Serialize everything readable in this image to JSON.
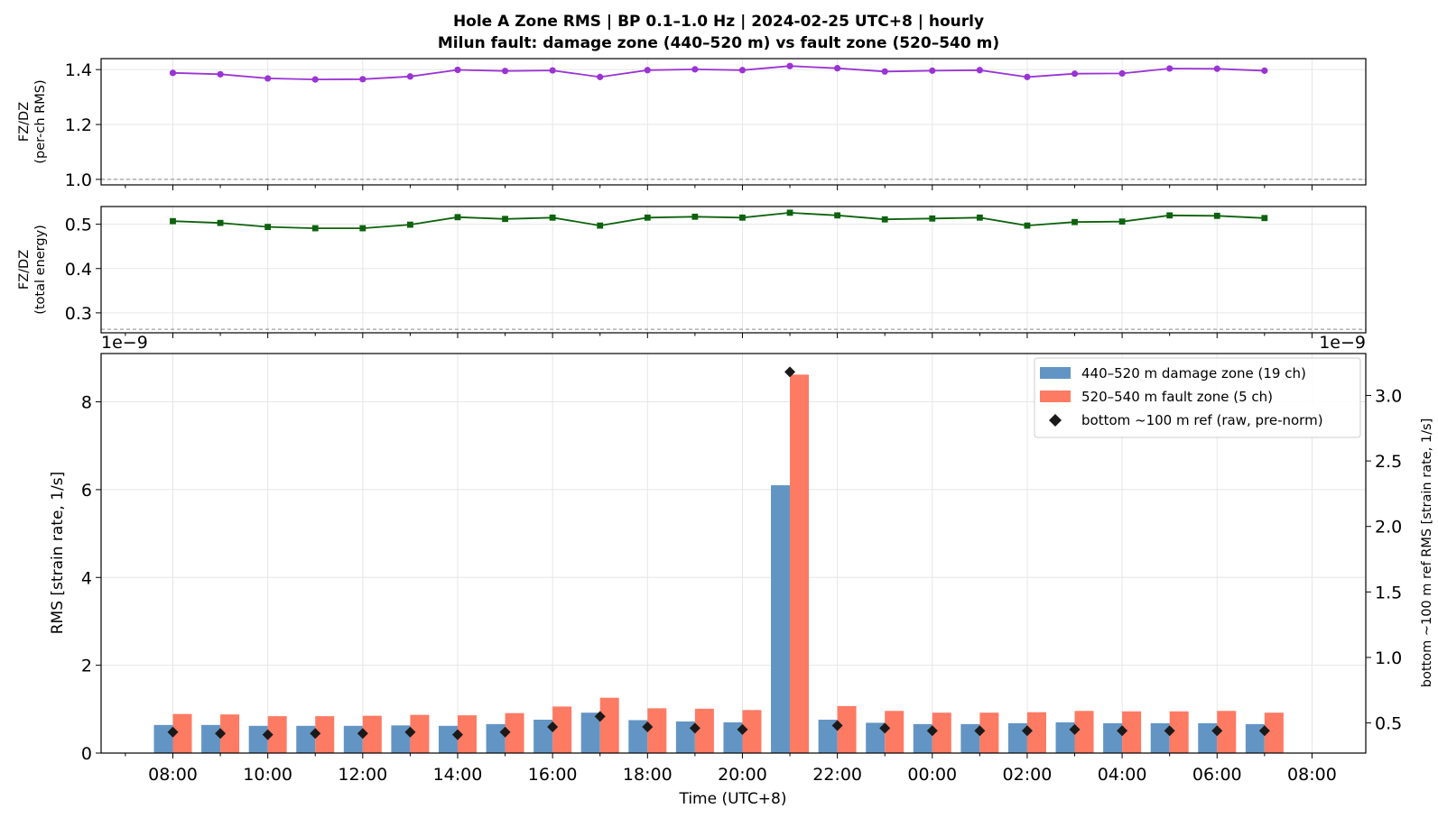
{
  "title_line1": "Hole A Zone RMS  |  BP 0.1–1.0 Hz  |  2024-02-25 UTC+8  |  hourly",
  "title_line2": "Milun fault: damage zone (440–520 m) vs fault zone (520–540 m)",
  "colors": {
    "damage": "#6395c4",
    "fault": "#fd7a63",
    "ratio_rms": "#9a33d4",
    "ratio_energy": "#0d620d",
    "ref_marker": "#1a1a1a",
    "grid": "#e6e6e6"
  },
  "chart_data": [
    {
      "id": "ratio_rms",
      "type": "line",
      "ylabel_line1": "FZ/DZ",
      "ylabel_line2": "(per-ch RMS)",
      "ylim": [
        0.98,
        1.44
      ],
      "yticks": [
        "1.0",
        "1.2",
        "1.4"
      ],
      "reference_line": 1.0,
      "marker": "circle",
      "grid": true,
      "x": [
        "08:00",
        "09:00",
        "10:00",
        "11:00",
        "12:00",
        "13:00",
        "14:00",
        "15:00",
        "16:00",
        "17:00",
        "18:00",
        "19:00",
        "20:00",
        "21:00",
        "22:00",
        "23:00",
        "00:00",
        "01:00",
        "02:00",
        "03:00",
        "04:00",
        "05:00",
        "06:00",
        "07:00"
      ],
      "values": [
        1.388,
        1.383,
        1.368,
        1.364,
        1.365,
        1.375,
        1.399,
        1.395,
        1.397,
        1.373,
        1.398,
        1.401,
        1.398,
        1.413,
        1.405,
        1.393,
        1.396,
        1.398,
        1.373,
        1.385,
        1.386,
        1.404,
        1.403,
        1.396
      ]
    },
    {
      "id": "ratio_energy",
      "type": "line",
      "ylabel_line1": "FZ/DZ",
      "ylabel_line2": "(total energy)",
      "ylim": [
        0.255,
        0.54
      ],
      "yticks": [
        "0.3",
        "0.4",
        "0.5"
      ],
      "reference_line": 0.263,
      "marker": "square",
      "grid": true,
      "x": [
        "08:00",
        "09:00",
        "10:00",
        "11:00",
        "12:00",
        "13:00",
        "14:00",
        "15:00",
        "16:00",
        "17:00",
        "18:00",
        "19:00",
        "20:00",
        "21:00",
        "22:00",
        "23:00",
        "00:00",
        "01:00",
        "02:00",
        "03:00",
        "04:00",
        "05:00",
        "06:00",
        "07:00"
      ],
      "values": [
        0.507,
        0.503,
        0.494,
        0.491,
        0.491,
        0.499,
        0.516,
        0.512,
        0.515,
        0.497,
        0.515,
        0.517,
        0.515,
        0.526,
        0.52,
        0.511,
        0.513,
        0.515,
        0.497,
        0.505,
        0.506,
        0.52,
        0.519,
        0.514
      ],
      "offset_left": "1e−9",
      "offset_right": "1e−9"
    },
    {
      "id": "zone_rms",
      "type": "bar",
      "xlabel": "Time (UTC+8)",
      "ylabel": "RMS  [strain rate, 1/s]",
      "ylabel_right": "bottom ~100 m ref RMS  [strain rate, 1/s]",
      "ylim": [
        0,
        9.1
      ],
      "ylim_right": [
        0.27,
        3.32
      ],
      "yticks": [
        "0",
        "2",
        "4",
        "6",
        "8"
      ],
      "yticks_right": [
        "0.5",
        "1.0",
        "1.5",
        "2.0",
        "2.5",
        "3.0"
      ],
      "xticks": [
        "08:00",
        "10:00",
        "12:00",
        "14:00",
        "16:00",
        "18:00",
        "20:00",
        "22:00",
        "00:00",
        "02:00",
        "04:00",
        "06:00",
        "08:00"
      ],
      "grid": true,
      "legend_position": "top-right",
      "categories": [
        "08:00",
        "09:00",
        "10:00",
        "11:00",
        "12:00",
        "13:00",
        "14:00",
        "15:00",
        "16:00",
        "17:00",
        "18:00",
        "19:00",
        "20:00",
        "21:00",
        "22:00",
        "23:00",
        "00:00",
        "01:00",
        "02:00",
        "03:00",
        "04:00",
        "05:00",
        "06:00",
        "07:00"
      ],
      "series": [
        {
          "name": "440–520 m  damage zone (19 ch)",
          "values": [
            0.64,
            0.64,
            0.62,
            0.62,
            0.62,
            0.63,
            0.62,
            0.66,
            0.76,
            0.92,
            0.75,
            0.72,
            0.7,
            6.1,
            0.76,
            0.69,
            0.66,
            0.66,
            0.68,
            0.7,
            0.68,
            0.68,
            0.68,
            0.66
          ]
        },
        {
          "name": "520–540 m  fault zone (5 ch)",
          "values": [
            0.89,
            0.88,
            0.84,
            0.84,
            0.85,
            0.87,
            0.86,
            0.91,
            1.06,
            1.26,
            1.02,
            1.01,
            0.98,
            8.62,
            1.07,
            0.96,
            0.92,
            0.92,
            0.93,
            0.96,
            0.95,
            0.95,
            0.96,
            0.92
          ]
        },
        {
          "name": "bottom ~100 m ref (raw, pre-norm)",
          "axis": "right",
          "values": [
            0.43,
            0.42,
            0.41,
            0.42,
            0.42,
            0.43,
            0.41,
            0.43,
            0.47,
            0.55,
            0.47,
            0.46,
            0.45,
            3.18,
            0.48,
            0.46,
            0.44,
            0.44,
            0.44,
            0.45,
            0.44,
            0.44,
            0.44,
            0.44
          ]
        }
      ]
    }
  ]
}
